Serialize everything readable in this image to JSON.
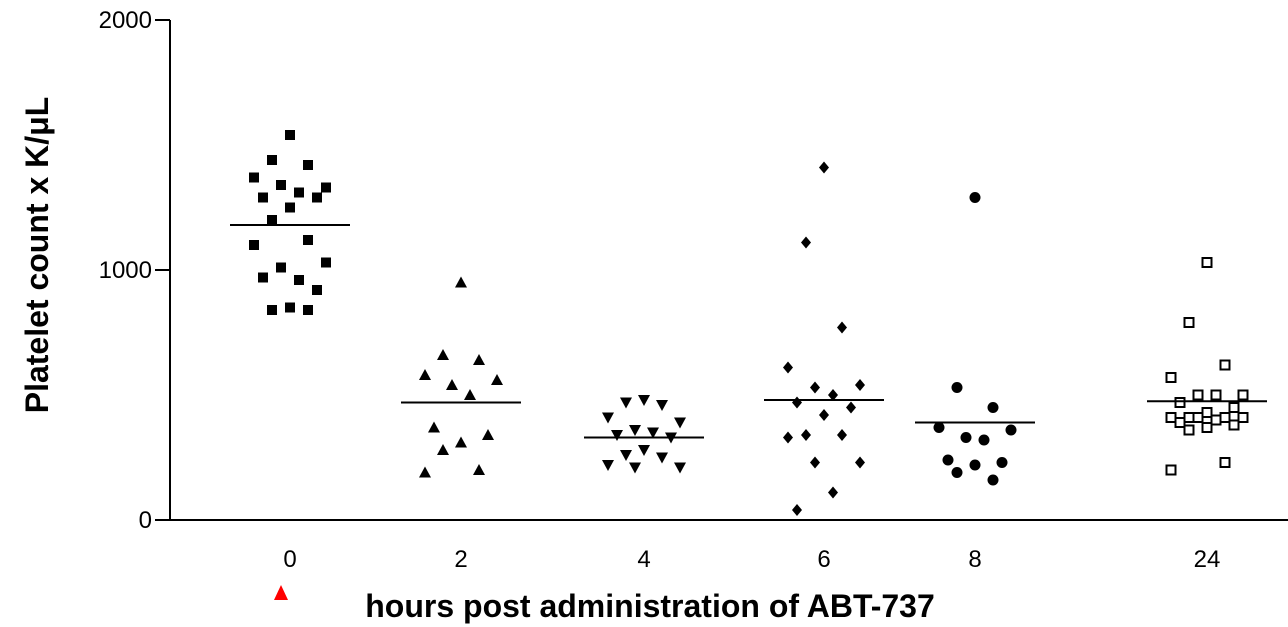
{
  "chart_data": {
    "type": "scatter",
    "subtype": "column-scatter",
    "xlabel": "hours post administration of ABT-737",
    "ylabel": "Platelet count x K/μL",
    "ylim": [
      0,
      2000
    ],
    "yticks": [
      0,
      1000,
      2000
    ],
    "grid": false,
    "categories": [
      "0",
      "2",
      "4",
      "6",
      "8",
      "24"
    ],
    "series": [
      {
        "category": "0",
        "marker": "square",
        "mean": 1180,
        "values": [
          1540,
          1440,
          1420,
          1370,
          1330,
          1340,
          1310,
          1290,
          1290,
          1250,
          1200,
          1120,
          1100,
          1030,
          1010,
          960,
          970,
          920,
          850,
          840,
          840
        ]
      },
      {
        "category": "2",
        "marker": "triangle-up",
        "mean": 470,
        "values": [
          950,
          660,
          640,
          580,
          560,
          540,
          500,
          370,
          340,
          310,
          280,
          200,
          190
        ]
      },
      {
        "category": "4",
        "marker": "triangle-down",
        "mean": 330,
        "values": [
          480,
          470,
          460,
          410,
          390,
          360,
          350,
          340,
          330,
          280,
          260,
          250,
          220,
          210,
          210
        ]
      },
      {
        "category": "6",
        "marker": "diamond",
        "mean": 480,
        "values": [
          1410,
          1110,
          770,
          610,
          540,
          530,
          500,
          470,
          450,
          420,
          340,
          340,
          330,
          230,
          230,
          110,
          40
        ]
      },
      {
        "category": "8",
        "marker": "circle",
        "mean": 390,
        "values": [
          1290,
          530,
          450,
          370,
          360,
          330,
          320,
          240,
          230,
          220,
          190,
          160
        ]
      },
      {
        "category": "24",
        "marker": "open-square",
        "mean": 475,
        "values": [
          1030,
          790,
          620,
          570,
          500,
          500,
          500,
          470,
          450,
          430,
          410,
          410,
          410,
          410,
          410,
          400,
          390,
          380,
          370,
          360,
          230,
          200
        ]
      }
    ],
    "annotations": [
      {
        "type": "marker",
        "shape": "triangle-up",
        "color": "#ff0000",
        "location": "below x-axis near category 0"
      }
    ]
  }
}
